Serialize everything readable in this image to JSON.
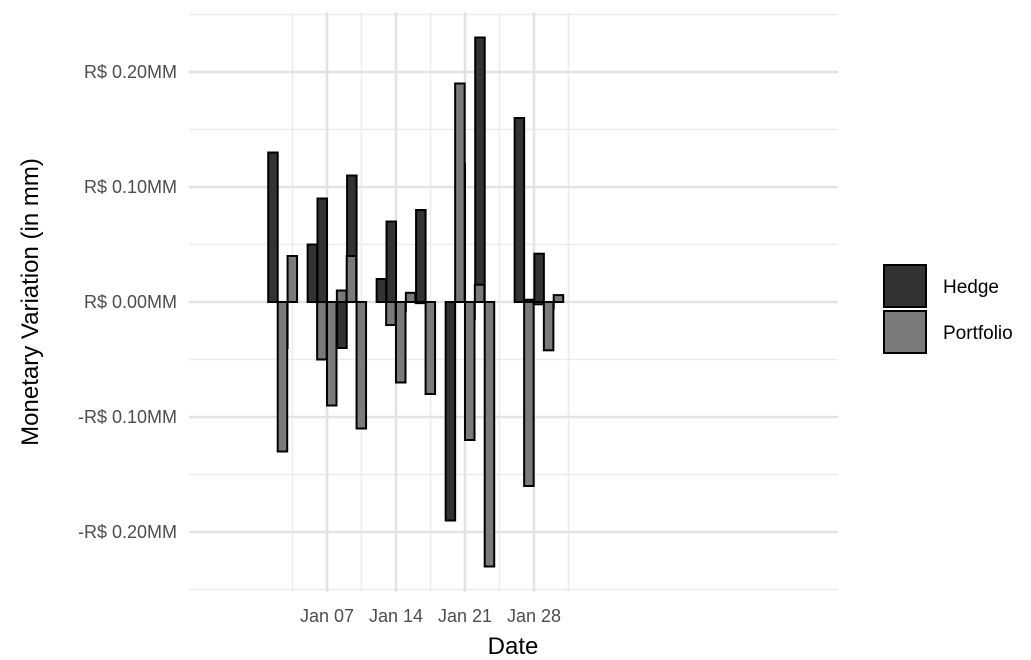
{
  "chart_data": {
    "type": "bar",
    "xlabel": "Date",
    "ylabel": "Monetary Variation (in mm)",
    "ylim": [
      -0.25,
      0.25
    ],
    "y_ticks": [
      -0.2,
      -0.1,
      0.0,
      0.1,
      0.2
    ],
    "y_tick_labels": [
      "-R$ 0.20MM",
      "-R$ 0.10MM",
      "R$ 0.00MM",
      "R$ 0.10MM",
      "R$ 0.20MM"
    ],
    "x_ticks": [
      "2025-01-07",
      "2025-01-14",
      "2025-01-21",
      "2025-01-28"
    ],
    "x_tick_labels": [
      "Jan 07",
      "Jan 14",
      "Jan 21",
      "Jan 28"
    ],
    "grid": true,
    "legend_position": "right",
    "series": [
      {
        "name": "Hedge",
        "color": "#333333",
        "values": [
          {
            "date": "2025-01-02",
            "value": 0.13
          },
          {
            "date": "2025-01-03",
            "value": -0.04
          },
          {
            "date": "2025-01-06",
            "value": 0.05
          },
          {
            "date": "2025-01-07",
            "value": 0.09
          },
          {
            "date": "2025-01-08",
            "value": -0.01
          },
          {
            "date": "2025-01-09",
            "value": -0.04
          },
          {
            "date": "2025-01-10",
            "value": 0.11
          },
          {
            "date": "2025-01-13",
            "value": 0.02
          },
          {
            "date": "2025-01-14",
            "value": 0.07
          },
          {
            "date": "2025-01-15",
            "value": -0.008
          },
          {
            "date": "2025-01-16",
            "value": 0.001
          },
          {
            "date": "2025-01-17",
            "value": 0.08
          },
          {
            "date": "2025-01-20",
            "value": -0.19
          },
          {
            "date": "2025-01-21",
            "value": 0.12
          },
          {
            "date": "2025-01-22",
            "value": -0.015
          },
          {
            "date": "2025-01-23",
            "value": 0.23
          },
          {
            "date": "2025-01-27",
            "value": 0.16
          },
          {
            "date": "2025-01-28",
            "value": 0.002
          },
          {
            "date": "2025-01-29",
            "value": 0.042
          },
          {
            "date": "2025-01-30",
            "value": -0.006
          }
        ]
      },
      {
        "name": "Portfolio",
        "color": "#7a7a7a",
        "values": [
          {
            "date": "2025-01-02",
            "value": -0.13
          },
          {
            "date": "2025-01-03",
            "value": 0.04
          },
          {
            "date": "2025-01-06",
            "value": -0.05
          },
          {
            "date": "2025-01-07",
            "value": -0.09
          },
          {
            "date": "2025-01-08",
            "value": 0.01
          },
          {
            "date": "2025-01-09",
            "value": 0.04
          },
          {
            "date": "2025-01-10",
            "value": -0.11
          },
          {
            "date": "2025-01-13",
            "value": -0.02
          },
          {
            "date": "2025-01-14",
            "value": -0.07
          },
          {
            "date": "2025-01-15",
            "value": 0.008
          },
          {
            "date": "2025-01-16",
            "value": -0.001
          },
          {
            "date": "2025-01-17",
            "value": -0.08
          },
          {
            "date": "2025-01-20",
            "value": 0.19
          },
          {
            "date": "2025-01-21",
            "value": -0.12
          },
          {
            "date": "2025-01-22",
            "value": 0.015
          },
          {
            "date": "2025-01-23",
            "value": -0.23
          },
          {
            "date": "2025-01-27",
            "value": -0.16
          },
          {
            "date": "2025-01-28",
            "value": -0.002
          },
          {
            "date": "2025-01-29",
            "value": -0.042
          },
          {
            "date": "2025-01-30",
            "value": 0.006
          }
        ]
      }
    ]
  }
}
